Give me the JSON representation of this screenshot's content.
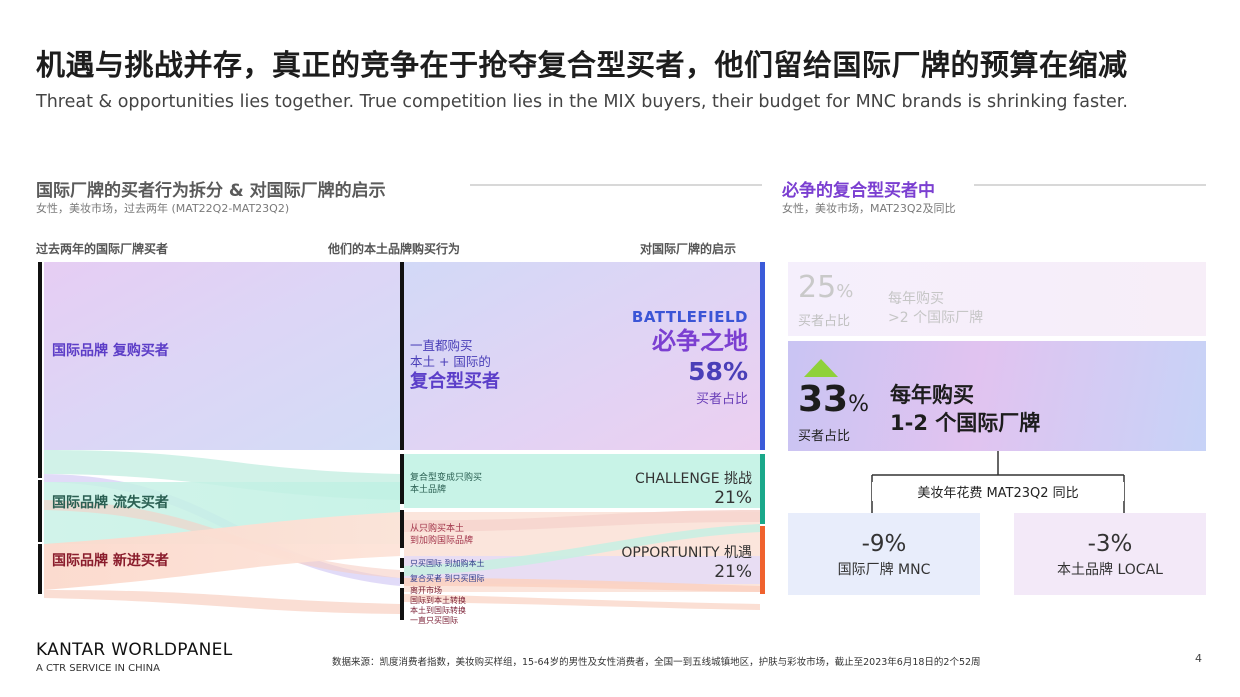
{
  "title": {
    "zh": "机遇与挑战并存，真正的竞争在于抢夺复合型买者，他们留给国际厂牌的预算在缩减",
    "en": "Threat & opportunities lies together. True competition lies in the MIX buyers, their budget for MNC brands is shrinking faster."
  },
  "left_section": {
    "heading": "国际厂牌的买者行为拆分 & 对国际厂牌的启示",
    "sub": "女性，美妆市场，过去两年 (MAT22Q2-MAT23Q2)",
    "col1": "过去两年的国际厂牌买者",
    "col2": "他们的本土品牌购买行为",
    "col3": "对国际厂牌的启示",
    "buyers": {
      "repeat": "国际品牌 复购买者",
      "lost": "国际品牌 流失买者",
      "new": "国际品牌 新进买者"
    },
    "mix": {
      "line1": "一直都购买",
      "line2": "本土 + 国际的",
      "line3": "复合型买者"
    },
    "battlefield": {
      "en": "BATTLEFIELD",
      "zh": "必争之地",
      "pct": "58%",
      "note": "买者占比"
    },
    "challenge_flow": {
      "line1": "复合型变成只购买",
      "line2": "本土品牌"
    },
    "challenge": {
      "label": "CHALLENGE 挑战",
      "pct": "21%"
    },
    "opportunity_flows": {
      "a1": "从只购买本土",
      "a2": "到加购国际品牌",
      "b": "只买国际 到加购本土",
      "c": "复合买者 到只买国际"
    },
    "opportunity": {
      "label": "OPPORTUNITY 机遇",
      "pct": "21%"
    },
    "tail_flows": [
      "离开市场",
      "国际到本土转换",
      "本土到国际转换",
      "一直只买国际"
    ]
  },
  "right_section": {
    "heading": "必争的复合型买者中",
    "sub": "女性，美妆市场，MAT23Q2及同比",
    "top": {
      "pct": "25",
      "pct_sign": "%",
      "note": "买者占比",
      "line1": "每年购买",
      "line2": ">2 个国际厂牌"
    },
    "main": {
      "pct": "33",
      "pct_sign": "%",
      "note": "买者占比",
      "line1": "每年购买",
      "line2": "1-2 个国际厂牌"
    },
    "spend_label": "美妆年花费  MAT23Q2 同比",
    "mnc": {
      "value": "-9%",
      "label": "国际厂牌 MNC"
    },
    "local": {
      "value": "-3%",
      "label": "本土品牌 LOCAL"
    }
  },
  "footer": {
    "brand": "KANTAR WORLDPANEL",
    "tagline": "A CTR SERVICE IN CHINA",
    "source": "数据来源：凯度消费者指数，美妆购买样组，15-64岁的男性及女性消费者，全国一到五线城镇地区，护肤与彩妆市场，截止至2023年6月18日的2个52周",
    "page": "4"
  },
  "colors": {
    "purple": "#7b3fd1",
    "blue": "#3b55d6",
    "teal": "#2a6d5c",
    "red": "#8f1f2e",
    "green_arrow": "#8fd13a"
  }
}
